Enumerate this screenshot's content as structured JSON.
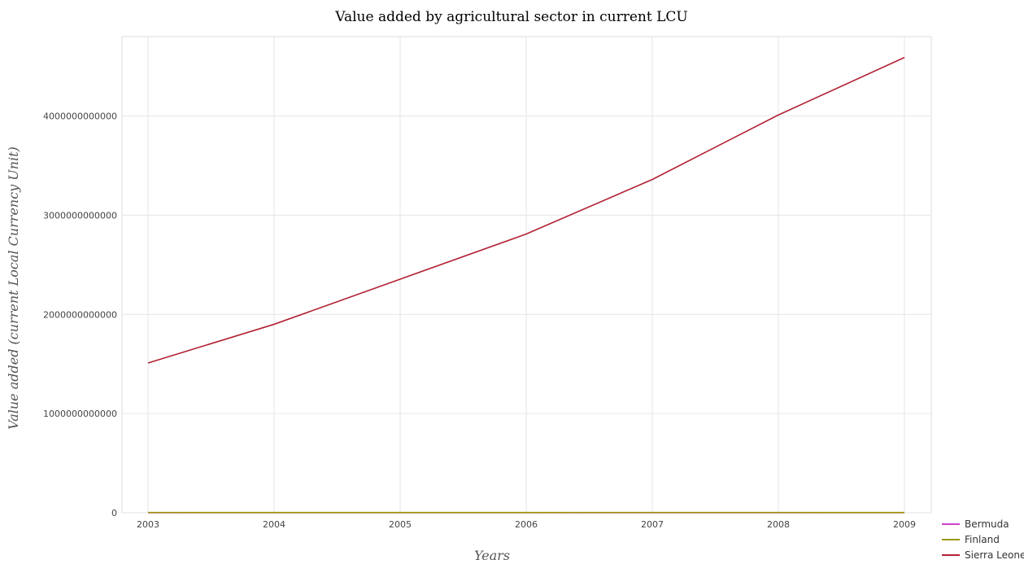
{
  "chart_data": {
    "type": "line",
    "title": "Value added by agricultural sector in current LCU",
    "xlabel": "Years",
    "ylabel": "Value added (current Local Currency Unit)",
    "x": [
      "2003",
      "2004",
      "2005",
      "2006",
      "2007",
      "2008",
      "2009"
    ],
    "ylim": [
      0,
      4800000000000
    ],
    "yticks": [
      0,
      1000000000000,
      2000000000000,
      3000000000000,
      4000000000000
    ],
    "ytick_labels": [
      "0",
      "1000000000000",
      "2000000000000",
      "3000000000000",
      "4000000000000"
    ],
    "grid": true,
    "legend_position": "bottom-right",
    "series": [
      {
        "name": "Bermuda",
        "color": "#cc44cc",
        "values": [
          41000000,
          42000000,
          43000000,
          44000000,
          45000000,
          44000000,
          43000000
        ]
      },
      {
        "name": "Finland",
        "color": "#999900",
        "values": [
          3000000000,
          2900000000,
          2600000000,
          2700000000,
          3100000000,
          3000000000,
          2600000000
        ]
      },
      {
        "name": "Sierra Leone",
        "color": "#b22234",
        "values": [
          1510000000000,
          1900000000000,
          2355000000000,
          2810000000000,
          3360000000000,
          4010000000000,
          4590000000000
        ]
      }
    ]
  }
}
